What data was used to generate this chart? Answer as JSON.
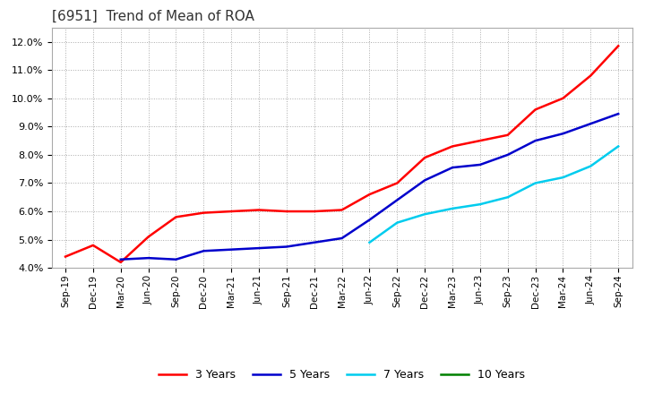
{
  "title": "[6951]  Trend of Mean of ROA",
  "title_fontsize": 11,
  "ylim": [
    0.04,
    0.125
  ],
  "yticks": [
    0.04,
    0.05,
    0.06,
    0.07,
    0.08,
    0.09,
    0.1,
    0.11,
    0.12
  ],
  "background_color": "#ffffff",
  "grid_color": "#aaaaaa",
  "series": {
    "3 Years": {
      "color": "#ff0000",
      "x": [
        "Sep-19",
        "Dec-19",
        "Mar-20",
        "Jun-20",
        "Sep-20",
        "Dec-20",
        "Mar-21",
        "Jun-21",
        "Sep-21",
        "Dec-21",
        "Mar-22",
        "Jun-22",
        "Sep-22",
        "Dec-22",
        "Mar-23",
        "Jun-23",
        "Sep-23",
        "Dec-23",
        "Mar-24",
        "Jun-24",
        "Sep-24"
      ],
      "y": [
        0.044,
        0.048,
        0.042,
        0.051,
        0.058,
        0.0595,
        0.06,
        0.0605,
        0.06,
        0.06,
        0.0605,
        0.066,
        0.07,
        0.079,
        0.083,
        0.085,
        0.087,
        0.096,
        0.1,
        0.108,
        0.1185
      ]
    },
    "5 Years": {
      "color": "#0000cc",
      "x": [
        "Mar-20",
        "Jun-20",
        "Sep-20",
        "Dec-20",
        "Mar-21",
        "Jun-21",
        "Sep-21",
        "Dec-21",
        "Mar-22",
        "Jun-22",
        "Sep-22",
        "Dec-22",
        "Mar-23",
        "Jun-23",
        "Sep-23",
        "Dec-23",
        "Mar-24",
        "Jun-24",
        "Sep-24"
      ],
      "y": [
        0.043,
        0.0435,
        0.043,
        0.046,
        0.0465,
        0.047,
        0.0475,
        0.049,
        0.0505,
        0.057,
        0.064,
        0.071,
        0.0755,
        0.0765,
        0.08,
        0.085,
        0.0875,
        0.091,
        0.0945
      ]
    },
    "7 Years": {
      "color": "#00ccee",
      "x": [
        "Jun-22",
        "Sep-22",
        "Dec-22",
        "Mar-23",
        "Jun-23",
        "Sep-23",
        "Dec-23",
        "Mar-24",
        "Jun-24",
        "Sep-24"
      ],
      "y": [
        0.049,
        0.056,
        0.059,
        0.061,
        0.0625,
        0.065,
        0.07,
        0.072,
        0.076,
        0.083
      ]
    },
    "10 Years": {
      "color": "#008000",
      "x": [],
      "y": []
    }
  },
  "xtick_labels": [
    "Sep-19",
    "Dec-19",
    "Mar-20",
    "Jun-20",
    "Sep-20",
    "Dec-20",
    "Mar-21",
    "Jun-21",
    "Sep-21",
    "Dec-21",
    "Mar-22",
    "Jun-22",
    "Sep-22",
    "Dec-22",
    "Mar-23",
    "Jun-23",
    "Sep-23",
    "Dec-23",
    "Mar-24",
    "Jun-24",
    "Sep-24"
  ],
  "legend_ncol": 4
}
